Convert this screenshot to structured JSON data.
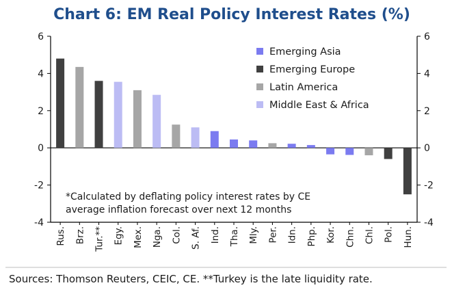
{
  "chart_data": {
    "type": "bar",
    "title": "Chart 6: EM Real Policy Interest Rates (%)",
    "ylim": [
      -4,
      6
    ],
    "yticks": [
      "6",
      "4",
      "2",
      "0",
      "-2",
      "-4"
    ],
    "grid": false,
    "legend_position": "top-right",
    "categories": [
      "Rus.",
      "Brz.",
      "Tur.**",
      "Egy.",
      "Mex.",
      "Nga.",
      "Col.",
      "S. Af.",
      "Ind.",
      "Tha.",
      "Mly.",
      "Per.",
      "Idn.",
      "Php.",
      "Kor.",
      "Chn.",
      "Chl.",
      "Pol.",
      "Hun."
    ],
    "values": [
      4.8,
      4.35,
      3.6,
      3.55,
      3.1,
      2.85,
      1.25,
      1.1,
      0.9,
      0.45,
      0.4,
      0.25,
      0.22,
      0.15,
      -0.35,
      -0.38,
      -0.4,
      -0.6,
      -2.5
    ],
    "groups": [
      "Emerging Europe",
      "Latin America",
      "Emerging Europe",
      "Middle East & Africa",
      "Latin America",
      "Middle East & Africa",
      "Latin America",
      "Middle East & Africa",
      "Emerging Asia",
      "Emerging Asia",
      "Emerging Asia",
      "Latin America",
      "Emerging Asia",
      "Emerging Asia",
      "Emerging Asia",
      "Emerging Asia",
      "Latin America",
      "Emerging Europe",
      "Emerging Europe"
    ],
    "legend": [
      {
        "name": "Emerging Asia",
        "color": "#7b7bf0"
      },
      {
        "name": "Emerging Europe",
        "color": "#404040"
      },
      {
        "name": "Latin America",
        "color": "#a6a6a6"
      },
      {
        "name": "Middle East & Africa",
        "color": "#bcbcf4"
      }
    ],
    "annotation_lines": [
      "*Calculated by deflating policy interest rates by CE",
      "average inflation forecast over next 12 months"
    ]
  },
  "footer": {
    "source": "Sources: Thomson Reuters, CEIC, CE. **Turkey is the late liquidity rate."
  }
}
